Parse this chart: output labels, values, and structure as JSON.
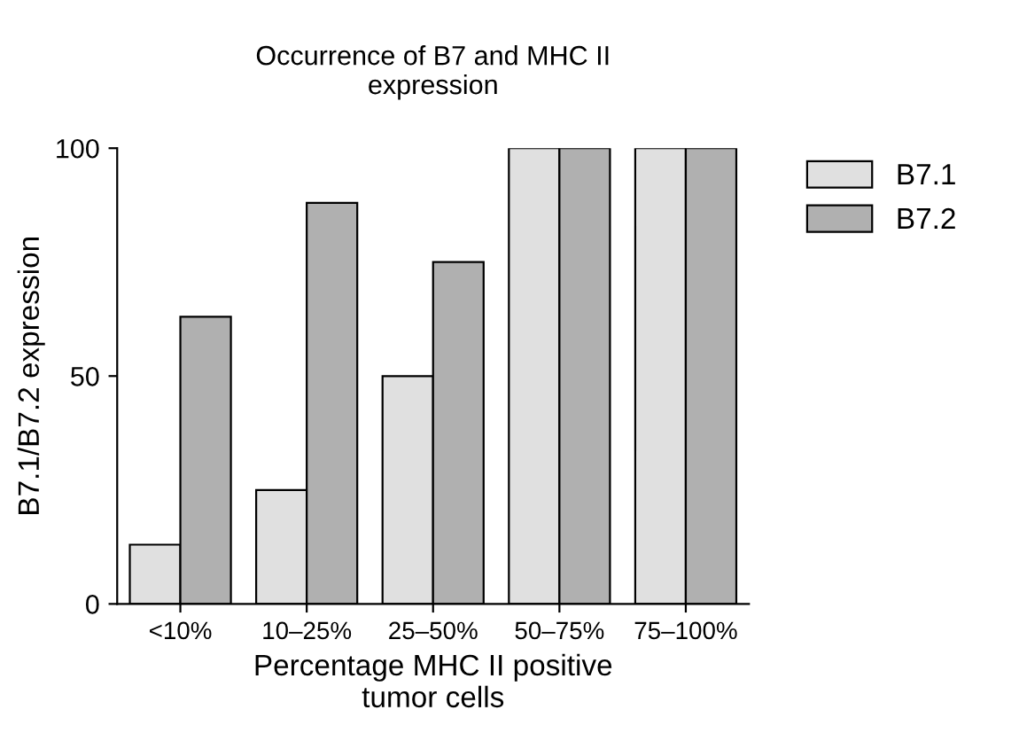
{
  "chart_data": {
    "type": "bar",
    "title": "Occurrence of B7 and MHC II\nexpression",
    "xlabel": "Percentage MHC II positive\ntumor cells",
    "ylabel": "B7.1/B7.2 expression",
    "categories": [
      "<10%",
      "10–25%",
      "25–50%",
      "50–75%",
      "75–100%"
    ],
    "series": [
      {
        "name": "B7.1",
        "color": "#e0e0e0",
        "values": [
          13,
          25,
          50,
          100,
          100
        ]
      },
      {
        "name": "B7.2",
        "color": "#b0b0b0",
        "values": [
          63,
          88,
          75,
          100,
          100
        ]
      }
    ],
    "ylim": [
      0,
      100
    ],
    "yticks": [
      0,
      50,
      100
    ],
    "grid": false,
    "legend": "top right"
  }
}
